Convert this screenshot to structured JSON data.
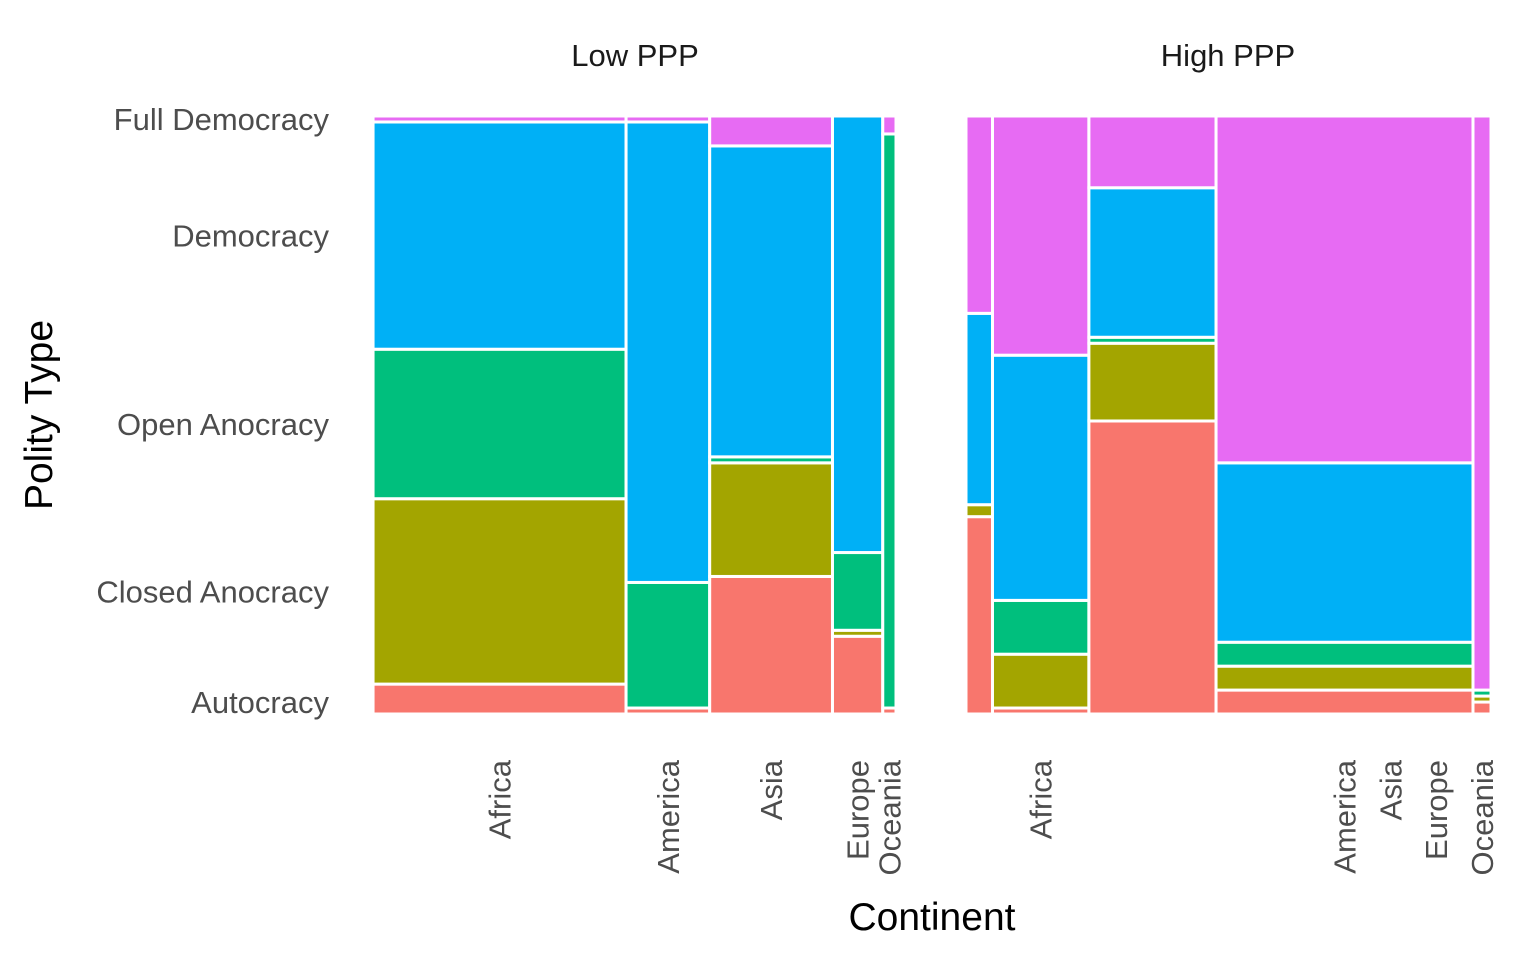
{
  "chart_data": {
    "type": "mosaic",
    "xlabel": "Continent",
    "ylabel": "Polity Type",
    "levels": [
      "Autocracy",
      "Closed Anocracy",
      "Open Anocracy",
      "Democracy",
      "Full Democracy"
    ],
    "level_colors": {
      "Autocracy": "#F8766D",
      "Closed Anocracy": "#A3A500",
      "Open Anocracy": "#00BF7D",
      "Democracy": "#00B0F6",
      "Full Democracy": "#E76BF3"
    },
    "yticks": [
      {
        "label": "Full Democracy",
        "value": 0.995
      },
      {
        "label": "Democracy",
        "value": 0.8
      },
      {
        "label": "Open Anocracy",
        "value": 0.485
      },
      {
        "label": "Closed Anocracy",
        "value": 0.205
      },
      {
        "label": "Autocracy",
        "value": 0.02
      }
    ],
    "panels": [
      {
        "title": "Low PPP",
        "columns": [
          {
            "continent": "",
            "width": 0.002,
            "values": [
              0.2,
              0.2,
              0.2,
              0.2,
              0.2
            ]
          },
          {
            "continent": "Africa",
            "width": 0.478,
            "values": [
              0.05,
              0.31,
              0.25,
              0.38,
              0.01
            ]
          },
          {
            "continent": "America",
            "width": 0.158,
            "values": [
              0.01,
              0.0,
              0.21,
              0.77,
              0.01
            ]
          },
          {
            "continent": "Asia",
            "width": 0.232,
            "values": [
              0.23,
              0.19,
              0.01,
              0.52,
              0.05
            ]
          },
          {
            "continent": "Europe",
            "width": 0.095,
            "values": [
              0.13,
              0.01,
              0.13,
              0.73,
              0.0
            ]
          },
          {
            "continent": "Oceania",
            "width": 0.025,
            "values": [
              0.01,
              0.0,
              0.96,
              0.0,
              0.03
            ]
          }
        ]
      },
      {
        "title": "High PPP",
        "columns": [
          {
            "continent": "",
            "width": 0.05,
            "values": [
              0.33,
              0.02,
              0.0,
              0.32,
              0.33
            ]
          },
          {
            "continent": "Africa",
            "width": 0.182,
            "values": [
              0.01,
              0.09,
              0.09,
              0.41,
              0.4
            ]
          },
          {
            "continent": "",
            "width": 0.24,
            "values": [
              0.49,
              0.13,
              0.01,
              0.25,
              0.12
            ]
          },
          {
            "continent": "America",
            "width": 0.485,
            "values": [
              0.04,
              0.04,
              0.04,
              0.3,
              0.58
            ]
          },
          {
            "continent": "Oceania",
            "width": 0.034,
            "values": [
              0.02,
              0.01,
              0.01,
              0.0,
              0.96
            ]
          }
        ],
        "extra_xticks": [
          "Asia",
          "Europe"
        ]
      }
    ]
  }
}
